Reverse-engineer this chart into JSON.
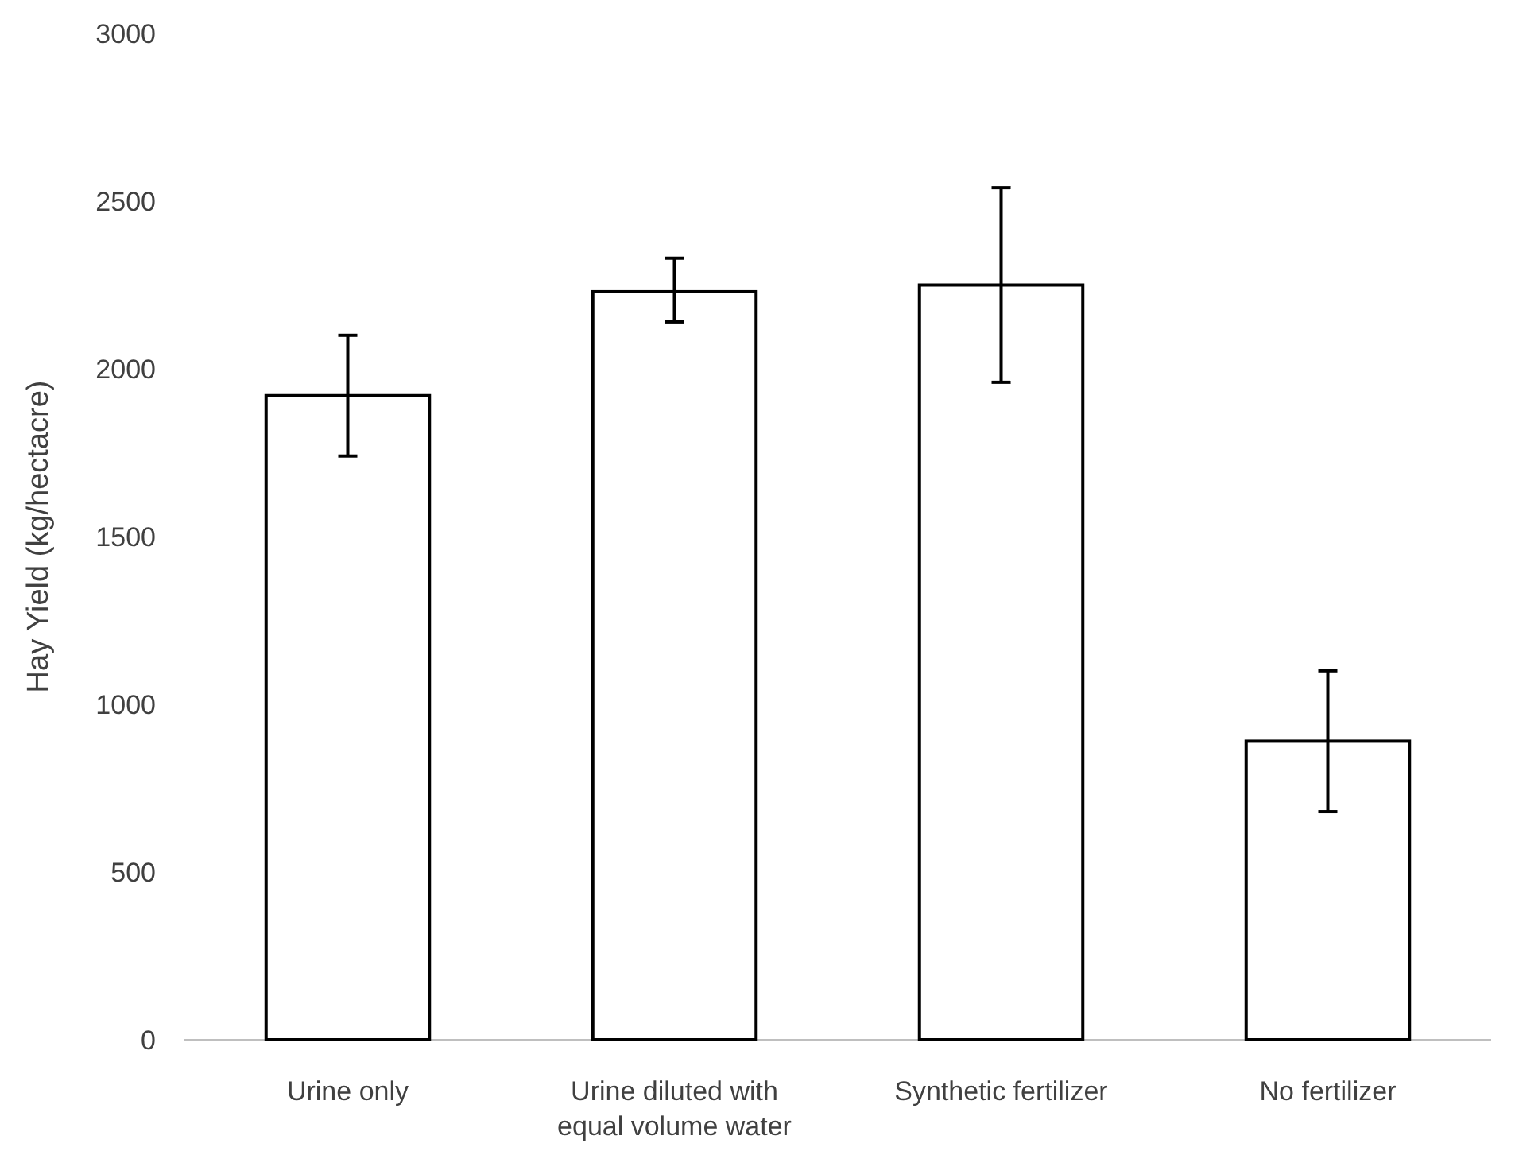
{
  "chart_data": {
    "type": "bar",
    "ylabel": "Hay Yield (kg/hectacre)",
    "categories": [
      "Urine only",
      "Urine diluted with equal volume water",
      "Synthetic fertilizer",
      "No fertilizer"
    ],
    "values": [
      1920,
      2230,
      2250,
      890
    ],
    "errors": [
      [
        1740,
        2100
      ],
      [
        2140,
        2330
      ],
      [
        1960,
        2540
      ],
      [
        680,
        1100
      ]
    ],
    "color": "#ffffff",
    "ylim": [
      0,
      3000
    ],
    "yticks": [
      0,
      500,
      1000,
      1500,
      2000,
      2500,
      3000
    ],
    "grid": false
  }
}
